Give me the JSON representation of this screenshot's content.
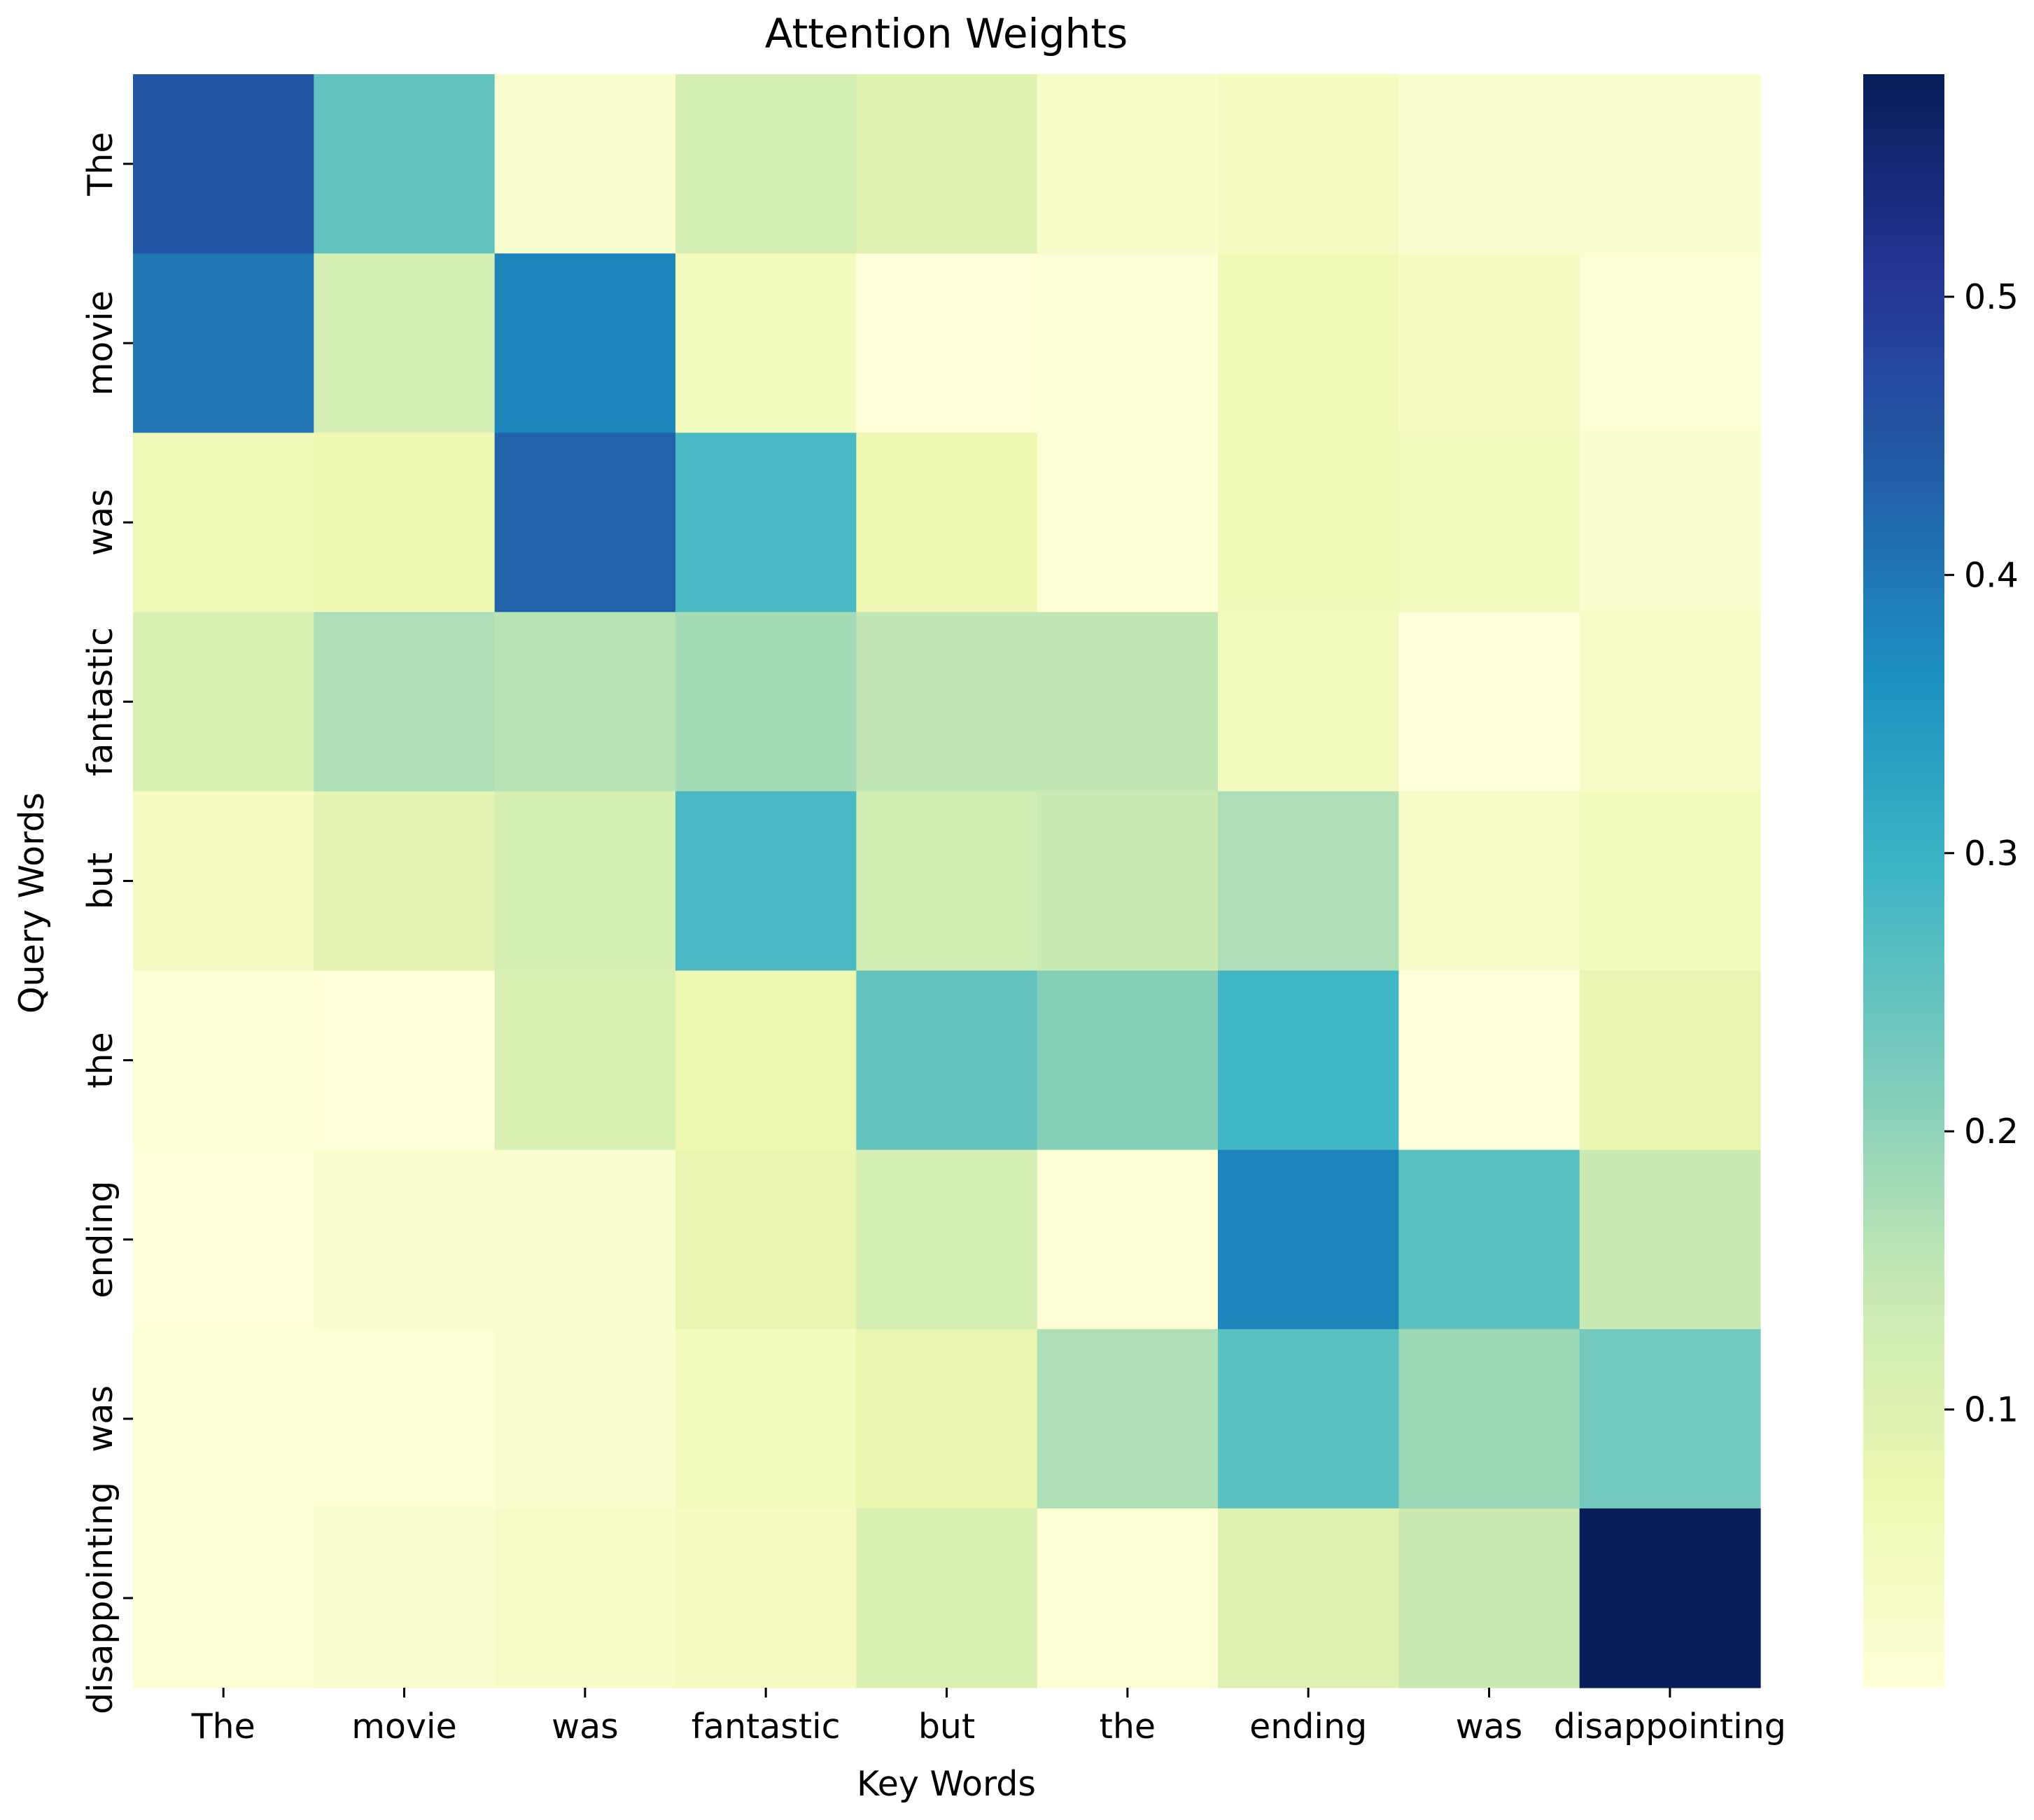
{
  "chart_data": {
    "type": "heatmap",
    "title": "Attention Weights",
    "xlabel": "Key Words",
    "ylabel": "Query Words",
    "x_categories": [
      "The",
      "movie",
      "was",
      "fantastic",
      "but",
      "the",
      "ending",
      "was",
      "disappointing"
    ],
    "y_categories": [
      "The",
      "movie",
      "was",
      "fantastic",
      "but",
      "the",
      "ending",
      "was",
      "disappointing"
    ],
    "values": [
      [
        0.45,
        0.25,
        0.02,
        0.12,
        0.1,
        0.03,
        0.04,
        0.02,
        0.02
      ],
      [
        0.4,
        0.12,
        0.38,
        0.05,
        0.0,
        0.01,
        0.06,
        0.04,
        0.01
      ],
      [
        0.06,
        0.07,
        0.43,
        0.28,
        0.07,
        0.01,
        0.06,
        0.05,
        0.02
      ],
      [
        0.11,
        0.17,
        0.16,
        0.18,
        0.15,
        0.15,
        0.05,
        0.0,
        0.03
      ],
      [
        0.04,
        0.09,
        0.12,
        0.28,
        0.13,
        0.14,
        0.17,
        0.03,
        0.05
      ],
      [
        0.01,
        0.0,
        0.11,
        0.07,
        0.25,
        0.21,
        0.29,
        0.0,
        0.08
      ],
      [
        0.0,
        0.02,
        0.02,
        0.08,
        0.12,
        0.01,
        0.38,
        0.26,
        0.14
      ],
      [
        0.01,
        0.01,
        0.02,
        0.05,
        0.08,
        0.17,
        0.26,
        0.19,
        0.23
      ],
      [
        0.01,
        0.02,
        0.03,
        0.04,
        0.11,
        0.01,
        0.1,
        0.14,
        0.58
      ]
    ],
    "colorbar": {
      "colormap": "YlGnBu",
      "range": [
        0.0,
        0.58
      ],
      "ticks": [
        0.1,
        0.2,
        0.3,
        0.4,
        0.5
      ],
      "tick_labels": [
        "0.1",
        "0.2",
        "0.3",
        "0.4",
        "0.5"
      ]
    }
  }
}
